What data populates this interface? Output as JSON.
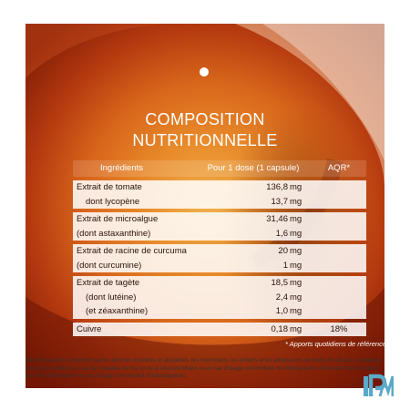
{
  "title": {
    "line1": "COMPOSITION",
    "line2": "NUTRITIONNELLE"
  },
  "table": {
    "headers": {
      "ingredients": "Ingrédients",
      "dose": "Pour 1 dose (1 capsule)",
      "aqr": "AQR*"
    },
    "groups": [
      {
        "rows": [
          {
            "label": "Extrait de tomate",
            "num": "136,8",
            "unit": "mg",
            "aqr": ""
          },
          {
            "label": "dont lycopène",
            "num": "13,7",
            "unit": "mg",
            "aqr": ""
          }
        ]
      },
      {
        "rows": [
          {
            "label": "Extrait de microalgue",
            "num": "31,46",
            "unit": "mg",
            "aqr": ""
          },
          {
            "label": "(dont astaxanthine)",
            "num": "1,6",
            "unit": "mg",
            "aqr": ""
          }
        ]
      },
      {
        "rows": [
          {
            "label": "Extrait de racine de curcuma",
            "num": "20",
            "unit": "mg",
            "aqr": ""
          },
          {
            "label": "(dont curcumine)",
            "num": "1",
            "unit": "mg",
            "aqr": ""
          }
        ]
      },
      {
        "rows": [
          {
            "label": "Extrait de tagète",
            "num": "18,5",
            "unit": "mg",
            "aqr": ""
          },
          {
            "label": "(dont lutéine)",
            "num": "2,4",
            "unit": "mg",
            "aqr": ""
          },
          {
            "label": "(et zéaxanthine)",
            "num": "1,0",
            "unit": "mg",
            "aqr": ""
          }
        ]
      },
      {
        "rows": [
          {
            "label": "Cuivre",
            "num": "0,18",
            "unit": "mg",
            "aqr": "18%"
          }
        ]
      }
    ]
  },
  "footnote": "* Apports quotidiens de référence",
  "disclaimer": "Ne doit pas être consommé par les femmes enceintes et allaitantes, les nourrissons, les enfants et les adolescents de moins de 18 ans. Demandez l'avis d'un médecin en cas de maladies du foie ou de la vésicule biliaire ou en cas d'usage concomitant de médicaments. Consultez votre médecin ou votre pharmacien en cas d'usage concomitant d'anticoagulants.",
  "logo": {
    "text": "IPM",
    "color": "#5aa9c8"
  }
}
